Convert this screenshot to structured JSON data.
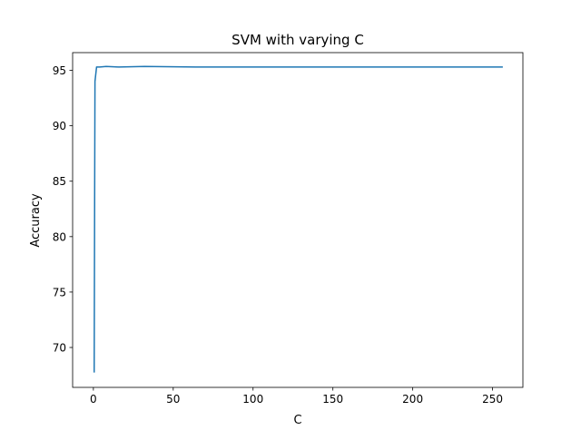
{
  "chart_data": {
    "type": "line",
    "title": "SVM with varying C",
    "xlabel": "C",
    "ylabel": "Accuracy",
    "xlim": [
      -13,
      269
    ],
    "ylim": [
      66.4,
      96.6
    ],
    "xticks": [
      0,
      50,
      100,
      150,
      200,
      250
    ],
    "yticks": [
      70,
      75,
      80,
      85,
      90,
      95
    ],
    "grid": false,
    "series": [
      {
        "color": "#1f77b4",
        "x": [
          0.5,
          1,
          2,
          4,
          8,
          16,
          32,
          64,
          128,
          256
        ],
        "y": [
          67.8,
          94.0,
          95.3,
          95.3,
          95.35,
          95.3,
          95.35,
          95.3,
          95.3,
          95.3
        ]
      }
    ]
  }
}
